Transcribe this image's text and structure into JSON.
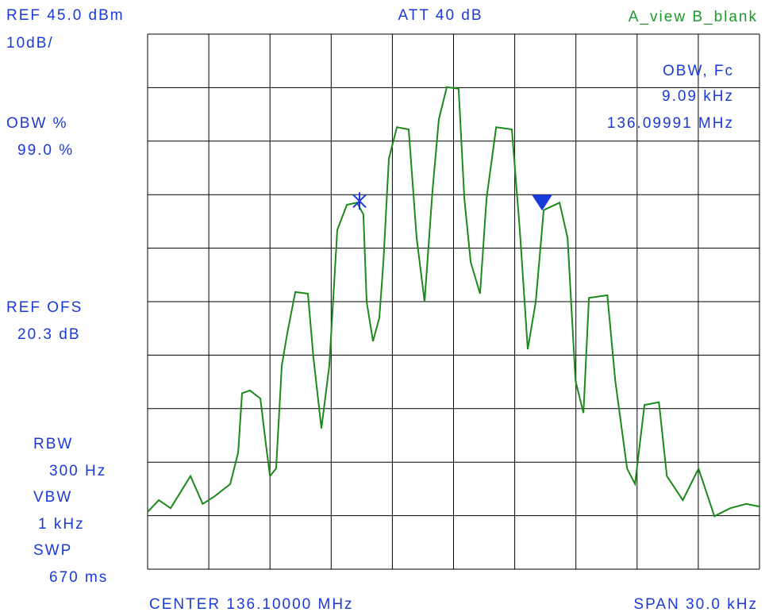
{
  "chart_data": {
    "type": "line",
    "xlim": [
      -15,
      15
    ],
    "ylim": [
      -55,
      45
    ],
    "xticks": [
      -15,
      -12,
      -9,
      -6,
      -3,
      0,
      3,
      6,
      9,
      12,
      15
    ],
    "yticks": [
      -55,
      -45,
      -35,
      -25,
      -15,
      -5,
      5,
      15,
      25,
      35,
      45
    ],
    "grid": true,
    "annotations": [
      "REF 45.0 dBm",
      "10dB/",
      "ATT 40 dB",
      "A_view B_blank",
      "OBW %",
      "99.0 %",
      "REF OFS",
      "20.3 dB",
      "RBW",
      "300 Hz",
      "VBW",
      "1 kHz",
      "SWP",
      "670 ms",
      "OBW, Fc",
      "9.09 kHz",
      "136.09991 MHz",
      "CENTER 136.10000 MHz",
      "SPAN 30.0 kHz"
    ],
    "series": [
      {
        "color": "#1a8a1a",
        "x": [
          -15.0,
          -14.45,
          -13.87,
          -12.9,
          -12.3,
          -11.72,
          -10.95,
          -10.56,
          -10.37,
          -9.98,
          -9.47,
          -9.2,
          -9.0,
          -8.7,
          -8.42,
          -8.15,
          -7.76,
          -7.14,
          -6.87,
          -6.48,
          -6.09,
          -5.7,
          -5.23,
          -4.73,
          -4.42,
          -4.26,
          -3.95,
          -3.64,
          -3.44,
          -3.17,
          -2.78,
          -2.2,
          -1.81,
          -1.42,
          -1.03,
          -0.72,
          -0.33,
          0.25,
          0.53,
          0.84,
          1.3,
          1.62,
          2.09,
          2.86,
          3.25,
          3.64,
          4.03,
          4.42,
          5.2,
          5.59,
          5.98,
          6.37,
          6.64,
          7.54,
          7.93,
          8.51,
          8.9,
          9.36,
          10.07,
          10.46,
          11.24,
          12.01,
          12.79,
          13.57,
          14.35,
          15.0
        ],
        "values": [
          -44.3,
          -42.1,
          -43.6,
          -37.6,
          -42.8,
          -41.4,
          -39.1,
          -33.2,
          -22.1,
          -21.6,
          -23.1,
          -31.7,
          -37.6,
          -36.2,
          -16.9,
          -10.9,
          -3.2,
          -3.5,
          -15.4,
          -28.7,
          -16.9,
          8.4,
          13.1,
          13.5,
          11.3,
          -5.0,
          -12.4,
          -8.0,
          2.4,
          21.7,
          27.6,
          27.2,
          6.9,
          -5.0,
          15.8,
          29.1,
          35.1,
          34.8,
          14.3,
          2.4,
          -3.5,
          14.3,
          27.6,
          27.2,
          8.4,
          -13.9,
          -5.0,
          12.1,
          13.5,
          6.9,
          -19.8,
          -25.8,
          -4.3,
          -3.8,
          -19.8,
          -36.2,
          -39.1,
          -24.3,
          -23.8,
          -37.6,
          -42.1,
          -36.2,
          -45.1,
          -43.6,
          -42.8,
          -43.3
        ]
      }
    ],
    "markers": [
      {
        "shape": "asterisk",
        "x": -4.61,
        "y": 13.8,
        "color": "#1a3adb"
      },
      {
        "shape": "triangle",
        "x": 4.34,
        "y": 13.5,
        "color": "#1a3adb"
      }
    ]
  }
}
